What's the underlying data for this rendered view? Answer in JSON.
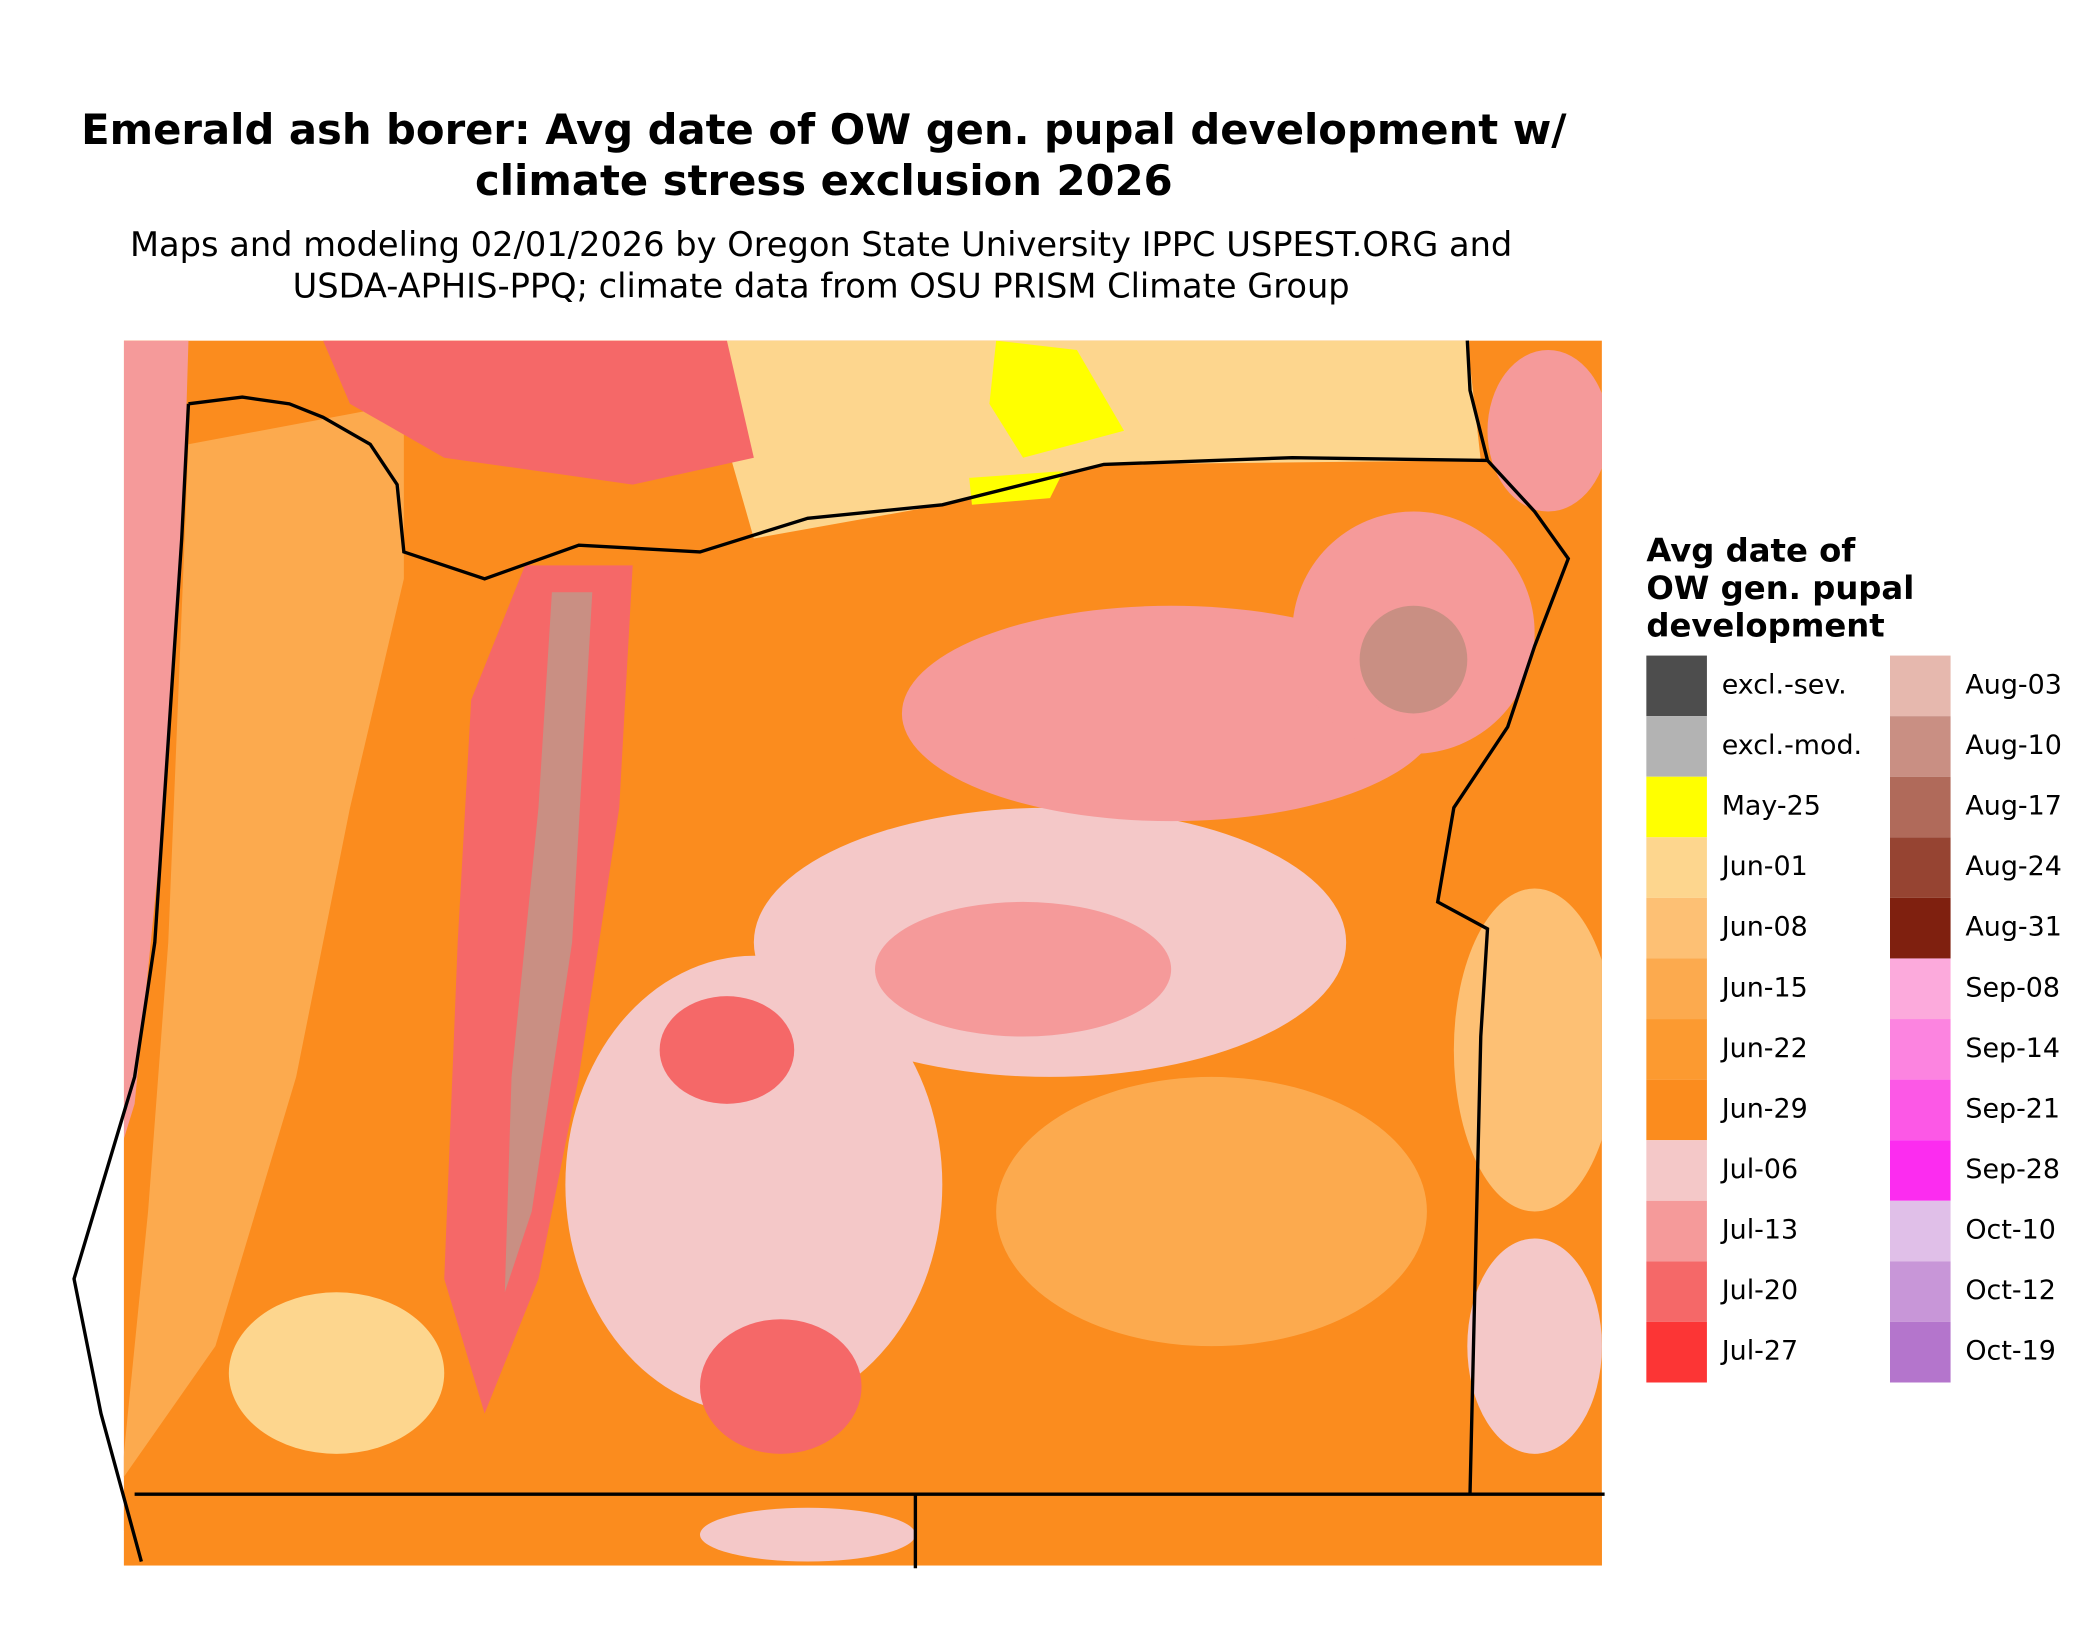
{
  "title": [
    "Emerald ash borer: Avg date of OW gen. pupal development w/",
    "climate stress exclusion 2026"
  ],
  "subtitle": [
    "Maps and modeling 02/01/2026 by Oregon State University IPPC USPEST.ORG and",
    "USDA-APHIS-PPQ; climate data from OSU PRISM Climate Group"
  ],
  "legend": {
    "title": [
      "Avg date of",
      "OW gen. pupal",
      "development"
    ],
    "items": [
      {
        "label": "excl.-sev.",
        "color": "#4d4d4d"
      },
      {
        "label": "excl.-mod.",
        "color": "#b3b3b3"
      },
      {
        "label": "May-25",
        "color": "#ffff00"
      },
      {
        "label": "Jun-01",
        "color": "#fdd68e"
      },
      {
        "label": "Jun-08",
        "color": "#fdc074"
      },
      {
        "label": "Jun-15",
        "color": "#fcaa4e"
      },
      {
        "label": "Jun-22",
        "color": "#fc9a30"
      },
      {
        "label": "Jun-29",
        "color": "#fb8c1e"
      },
      {
        "label": "Jul-06",
        "color": "#f4c8c8"
      },
      {
        "label": "Jul-13",
        "color": "#f59a9a"
      },
      {
        "label": "Jul-20",
        "color": "#f56868"
      },
      {
        "label": "Jul-27",
        "color": "#fc3535"
      },
      {
        "label": "Aug-03",
        "color": "#e6b8ae"
      },
      {
        "label": "Aug-10",
        "color": "#c98f83"
      },
      {
        "label": "Aug-17",
        "color": "#b06a5a"
      },
      {
        "label": "Aug-24",
        "color": "#964432"
      },
      {
        "label": "Aug-31",
        "color": "#7f200f"
      },
      {
        "label": "Sep-08",
        "color": "#fcaadc"
      },
      {
        "label": "Sep-14",
        "color": "#fc84e0"
      },
      {
        "label": "Sep-21",
        "color": "#fc58e6"
      },
      {
        "label": "Sep-28",
        "color": "#fc2cf0"
      },
      {
        "label": "Oct-10",
        "color": "#e0bfe8"
      },
      {
        "label": "Oct-12",
        "color": "#c896d8"
      },
      {
        "label": "Oct-19",
        "color": "#b475cc"
      }
    ]
  }
}
